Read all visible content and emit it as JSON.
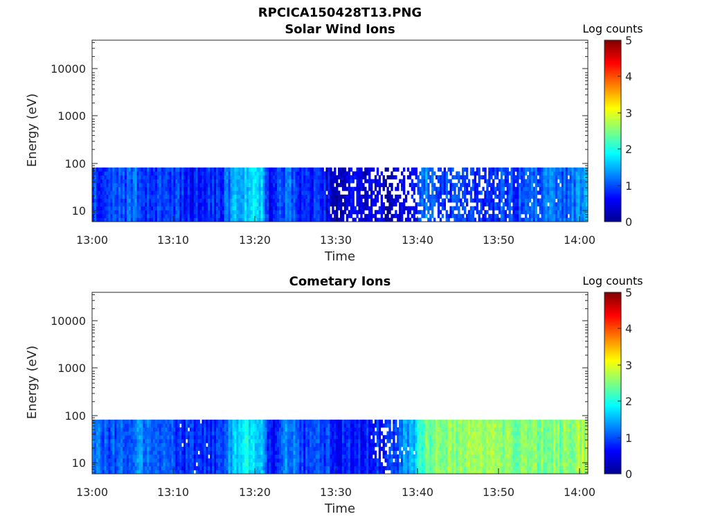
{
  "figure_title": "RPCICA150428T13.PNG",
  "chart_data": [
    {
      "type": "heatmap",
      "title": "Solar Wind Ions",
      "xlabel": "Time",
      "ylabel": "Energy (eV)",
      "y_scale": "log",
      "ylim": [
        5.6,
        45000
      ],
      "x_range": [
        "13:00",
        "14:01"
      ],
      "x_ticks": [
        "13:00",
        "13:10",
        "13:20",
        "13:30",
        "13:40",
        "13:50",
        "14:00"
      ],
      "y_ticks": [
        "10",
        "100",
        "1000",
        "10000"
      ],
      "y_tick_values": [
        10,
        100,
        1000,
        10000
      ],
      "data_energy_range_ev": [
        5.6,
        82
      ],
      "colorbar": {
        "label": "Log counts",
        "range": [
          0,
          5
        ],
        "ticks": [
          "0",
          "1",
          "2",
          "3",
          "4",
          "5"
        ],
        "colormap": "jet"
      },
      "profile_minutes": [
        0,
        2,
        4,
        6,
        8,
        10,
        12,
        14,
        16,
        17,
        18,
        20,
        21,
        22,
        24,
        26,
        28,
        29,
        30,
        32,
        34,
        35,
        36,
        38,
        40,
        41,
        42,
        44,
        46,
        48,
        50,
        52,
        54,
        56,
        58,
        60,
        61
      ],
      "profile_log_counts": [
        0.9,
        0.9,
        1.0,
        1.1,
        0.8,
        0.9,
        0.7,
        0.8,
        0.8,
        1.3,
        1.6,
        1.8,
        1.5,
        0.5,
        1.2,
        0.7,
        1.0,
        0.5,
        0.4,
        0.5,
        0.4,
        0.5,
        0.3,
        0.5,
        0.7,
        1.3,
        1.0,
        0.8,
        0.9,
        0.8,
        1.0,
        0.9,
        1.1,
        1.2,
        1.0,
        1.3,
        1.3
      ],
      "profile_gap_fraction": [
        0,
        0,
        0,
        0,
        0,
        0,
        0,
        0,
        0,
        0,
        0,
        0,
        0,
        0,
        0,
        0,
        0,
        0.05,
        0.15,
        0.2,
        0.25,
        0.4,
        0.5,
        0.45,
        0.4,
        0.2,
        0.3,
        0.35,
        0.35,
        0.3,
        0.25,
        0.1,
        0.1,
        0.05,
        0.05,
        0,
        0
      ]
    },
    {
      "type": "heatmap",
      "title": "Cometary Ions",
      "xlabel": "Time",
      "ylabel": "Energy (eV)",
      "y_scale": "log",
      "ylim": [
        5.6,
        45000
      ],
      "x_range": [
        "13:00",
        "14:01"
      ],
      "x_ticks": [
        "13:00",
        "13:10",
        "13:20",
        "13:30",
        "13:40",
        "13:50",
        "14:00"
      ],
      "y_ticks": [
        "10",
        "100",
        "1000",
        "10000"
      ],
      "y_tick_values": [
        10,
        100,
        1000,
        10000
      ],
      "data_energy_range_ev": [
        5.6,
        82
      ],
      "colorbar": {
        "label": "Log counts",
        "range": [
          0,
          5
        ],
        "ticks": [
          "0",
          "1",
          "2",
          "3",
          "4",
          "5"
        ],
        "colormap": "jet"
      },
      "profile_minutes": [
        0,
        2,
        4,
        6,
        8,
        10,
        12,
        14,
        16,
        17,
        18,
        20,
        21,
        22,
        24,
        26,
        28,
        30,
        32,
        34,
        35,
        36,
        38,
        39,
        40,
        41,
        42,
        44,
        46,
        48,
        50,
        52,
        54,
        56,
        58,
        60,
        61
      ],
      "profile_log_counts": [
        1.3,
        1.0,
        1.2,
        1.3,
        0.9,
        1.0,
        0.8,
        0.9,
        0.9,
        1.5,
        1.8,
        1.9,
        1.6,
        0.6,
        1.3,
        0.8,
        1.1,
        0.7,
        0.8,
        0.7,
        0.9,
        0.8,
        1.1,
        1.4,
        1.8,
        2.4,
        2.5,
        2.6,
        2.5,
        2.6,
        2.6,
        2.4,
        2.5,
        2.6,
        2.5,
        2.7,
        2.7
      ],
      "profile_gap_fraction": [
        0,
        0,
        0,
        0,
        0,
        0,
        0.05,
        0.05,
        0,
        0,
        0,
        0,
        0,
        0,
        0,
        0,
        0,
        0,
        0,
        0,
        0.2,
        0.3,
        0.1,
        0.05,
        0,
        0,
        0,
        0,
        0,
        0,
        0,
        0,
        0,
        0,
        0,
        0,
        0
      ]
    }
  ]
}
